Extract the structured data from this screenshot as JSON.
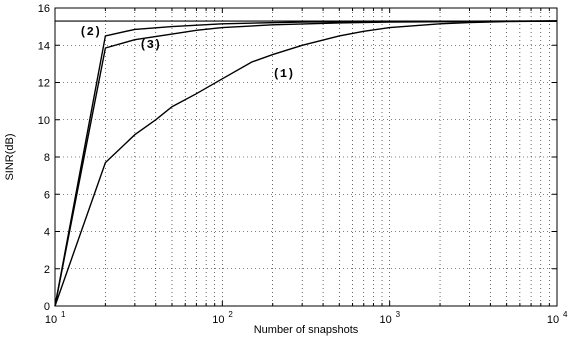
{
  "chart_data": {
    "type": "line",
    "title": "",
    "xlabel": "Number of snapshots",
    "ylabel": "SINR(dB)",
    "xscale": "log",
    "xlim": [
      10,
      10000
    ],
    "ylim": [
      0,
      16
    ],
    "grid": true,
    "legend": "none",
    "x_ticks": [
      {
        "value": 10,
        "base": "10",
        "exp": "1"
      },
      {
        "value": 100,
        "base": "10",
        "exp": "2"
      },
      {
        "value": 1000,
        "base": "10",
        "exp": "3"
      },
      {
        "value": 10000,
        "base": "10",
        "exp": "4"
      }
    ],
    "y_ticks": [
      0,
      2,
      4,
      6,
      8,
      10,
      12,
      14,
      16
    ],
    "reference_line": {
      "y": 15.3
    },
    "series": [
      {
        "label": "(1)",
        "label_at": {
          "x": 200,
          "y": 12.3
        },
        "points": [
          [
            10,
            0
          ],
          [
            20,
            7.7
          ],
          [
            30,
            9.2
          ],
          [
            40,
            10.0
          ],
          [
            50,
            10.7
          ],
          [
            70,
            11.4
          ],
          [
            100,
            12.2
          ],
          [
            150,
            13.1
          ],
          [
            200,
            13.5
          ],
          [
            300,
            14.0
          ],
          [
            500,
            14.5
          ],
          [
            700,
            14.75
          ],
          [
            1000,
            14.95
          ],
          [
            2000,
            15.15
          ],
          [
            3000,
            15.22
          ],
          [
            5000,
            15.27
          ],
          [
            10000,
            15.3
          ]
        ]
      },
      {
        "label": "(2)",
        "label_at": {
          "x": 14,
          "y": 14.55
        },
        "points": [
          [
            10,
            0
          ],
          [
            20,
            14.5
          ],
          [
            30,
            14.85
          ],
          [
            50,
            15.0
          ],
          [
            100,
            15.15
          ],
          [
            300,
            15.25
          ],
          [
            1000,
            15.28
          ],
          [
            10000,
            15.3
          ]
        ]
      },
      {
        "label": "(3)",
        "label_at": {
          "x": 32,
          "y": 13.85
        },
        "points": [
          [
            10,
            0
          ],
          [
            20,
            13.85
          ],
          [
            30,
            14.3
          ],
          [
            50,
            14.6
          ],
          [
            70,
            14.8
          ],
          [
            100,
            14.95
          ],
          [
            200,
            15.1
          ],
          [
            500,
            15.2
          ],
          [
            1000,
            15.25
          ],
          [
            10000,
            15.3
          ]
        ]
      }
    ]
  }
}
